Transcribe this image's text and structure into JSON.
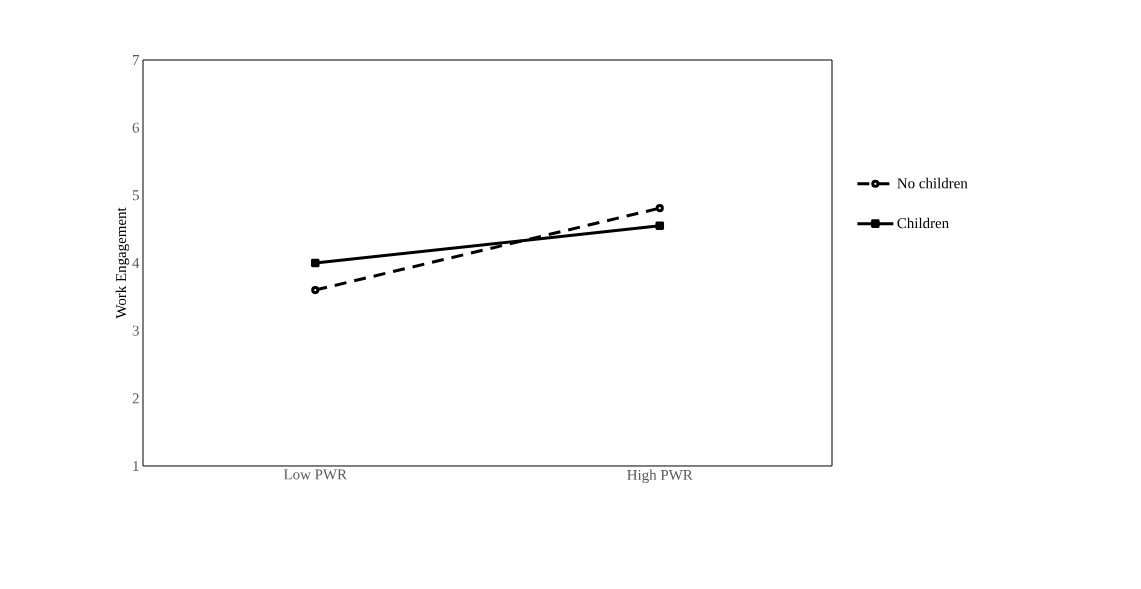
{
  "chart_data": {
    "type": "line",
    "ylabel": "Work Engagement",
    "categories": [
      "Low PWR",
      "High PWR"
    ],
    "series": [
      {
        "name": "No children",
        "color": "#000000",
        "values": [
          3.6,
          4.81
        ],
        "marker": "circle",
        "line_style": "dashed"
      },
      {
        "name": "Children",
        "color": "#000000",
        "values": [
          4.0,
          4.55
        ],
        "marker": "square",
        "line_style": "solid"
      }
    ],
    "ylim": [
      1,
      7
    ],
    "yticks": [
      1,
      2,
      3,
      4,
      5,
      6,
      7
    ],
    "legend": "right",
    "grid": false
  }
}
